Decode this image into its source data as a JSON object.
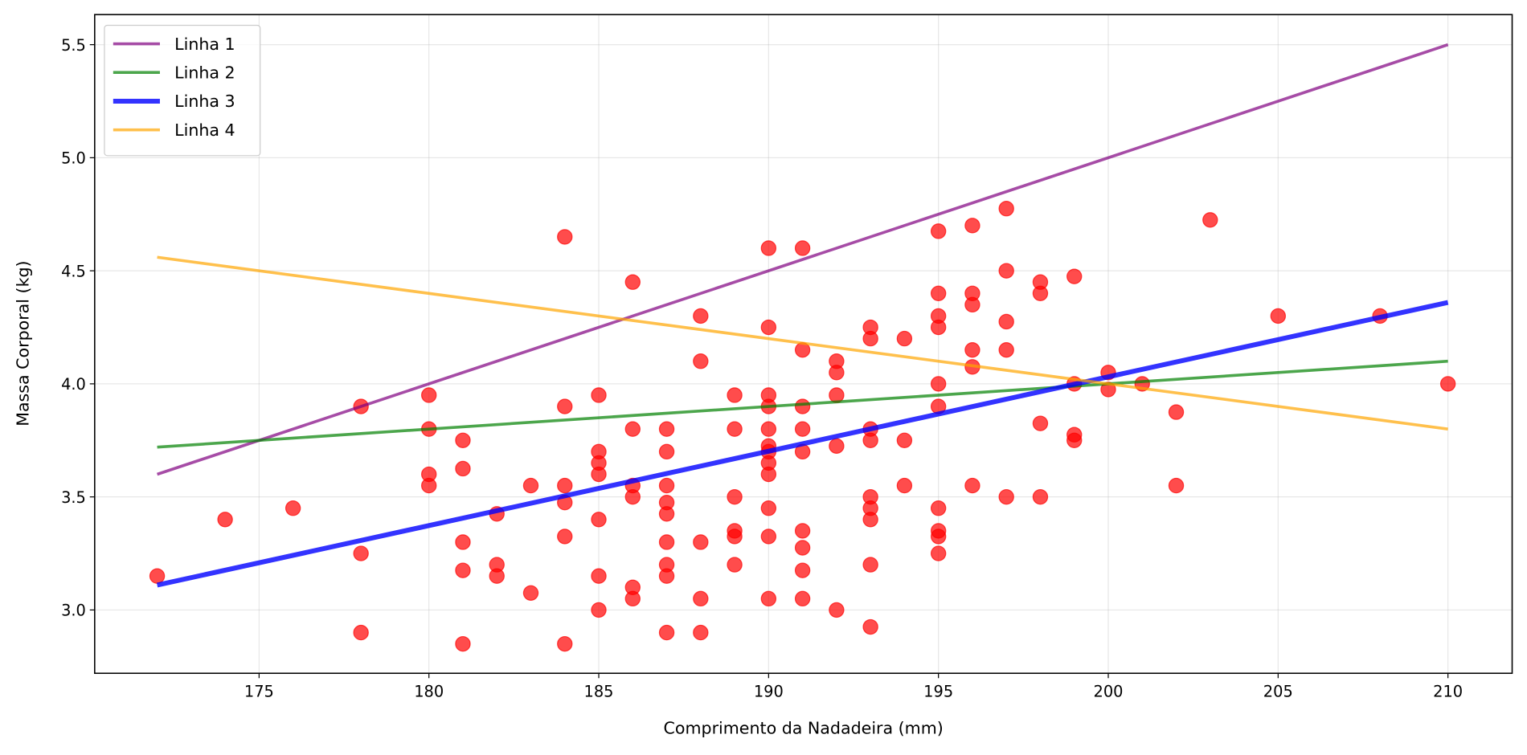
{
  "chart_data": {
    "type": "scatter",
    "title": "",
    "xlabel": "Comprimento da Nadadeira (mm)",
    "ylabel": "Massa Corporal (kg)",
    "xlim": [
      170.16,
      211.89
    ],
    "ylim": [
      2.72,
      5.633
    ],
    "xticks": [
      175,
      180,
      185,
      190,
      195,
      200,
      205,
      210
    ],
    "yticks": [
      3.0,
      3.5,
      4.0,
      4.5,
      5.0,
      5.5
    ],
    "xtick_labels": [
      "175",
      "180",
      "185",
      "190",
      "195",
      "200",
      "205",
      "210"
    ],
    "ytick_labels": [
      "3.0",
      "3.5",
      "4.0",
      "4.5",
      "5.0",
      "5.5"
    ],
    "grid": true,
    "legend_position": "top-left",
    "scatter_color": "#ff0000",
    "points": [
      [
        172,
        3.15
      ],
      [
        174,
        3.4
      ],
      [
        176,
        3.45
      ],
      [
        178,
        3.9
      ],
      [
        178,
        3.25
      ],
      [
        178,
        2.9
      ],
      [
        180,
        3.95
      ],
      [
        180,
        3.8
      ],
      [
        180,
        3.6
      ],
      [
        180,
        3.55
      ],
      [
        181,
        3.75
      ],
      [
        181,
        3.625
      ],
      [
        181,
        3.3
      ],
      [
        181,
        3.175
      ],
      [
        181,
        2.85
      ],
      [
        182,
        3.425
      ],
      [
        182,
        3.2
      ],
      [
        182,
        3.15
      ],
      [
        183,
        3.55
      ],
      [
        183,
        3.075
      ],
      [
        184,
        4.65
      ],
      [
        184,
        3.9
      ],
      [
        184,
        3.55
      ],
      [
        184,
        3.475
      ],
      [
        184,
        3.325
      ],
      [
        184,
        2.85
      ],
      [
        185,
        3.95
      ],
      [
        185,
        3.7
      ],
      [
        185,
        3.65
      ],
      [
        185,
        3.6
      ],
      [
        185,
        3.4
      ],
      [
        185,
        3.15
      ],
      [
        185,
        3.0
      ],
      [
        186,
        4.45
      ],
      [
        186,
        3.8
      ],
      [
        186,
        3.55
      ],
      [
        186,
        3.5
      ],
      [
        186,
        3.1
      ],
      [
        186,
        3.05
      ],
      [
        187,
        3.8
      ],
      [
        187,
        3.7
      ],
      [
        187,
        3.55
      ],
      [
        187,
        3.475
      ],
      [
        187,
        3.425
      ],
      [
        187,
        3.3
      ],
      [
        187,
        3.2
      ],
      [
        187,
        3.15
      ],
      [
        187,
        2.9
      ],
      [
        188,
        4.3
      ],
      [
        188,
        4.1
      ],
      [
        188,
        3.3
      ],
      [
        188,
        3.05
      ],
      [
        188,
        2.9
      ],
      [
        189,
        3.95
      ],
      [
        189,
        3.8
      ],
      [
        189,
        3.5
      ],
      [
        189,
        3.35
      ],
      [
        189,
        3.325
      ],
      [
        189,
        3.2
      ],
      [
        190,
        4.6
      ],
      [
        190,
        4.25
      ],
      [
        190,
        3.95
      ],
      [
        190,
        3.9
      ],
      [
        190,
        3.8
      ],
      [
        190,
        3.725
      ],
      [
        190,
        3.7
      ],
      [
        190,
        3.65
      ],
      [
        190,
        3.6
      ],
      [
        190,
        3.45
      ],
      [
        190,
        3.325
      ],
      [
        190,
        3.05
      ],
      [
        191,
        4.6
      ],
      [
        191,
        4.15
      ],
      [
        191,
        3.9
      ],
      [
        191,
        3.8
      ],
      [
        191,
        3.7
      ],
      [
        191,
        3.35
      ],
      [
        191,
        3.275
      ],
      [
        191,
        3.175
      ],
      [
        191,
        3.05
      ],
      [
        192,
        4.1
      ],
      [
        192,
        4.05
      ],
      [
        192,
        3.95
      ],
      [
        192,
        3.725
      ],
      [
        192,
        3.0
      ],
      [
        193,
        4.25
      ],
      [
        193,
        4.2
      ],
      [
        193,
        3.8
      ],
      [
        193,
        3.75
      ],
      [
        193,
        3.5
      ],
      [
        193,
        3.45
      ],
      [
        193,
        3.4
      ],
      [
        193,
        3.2
      ],
      [
        193,
        2.925
      ],
      [
        194,
        4.2
      ],
      [
        194,
        3.75
      ],
      [
        194,
        3.55
      ],
      [
        195,
        4.675
      ],
      [
        195,
        4.4
      ],
      [
        195,
        4.3
      ],
      [
        195,
        4.25
      ],
      [
        195,
        4.0
      ],
      [
        195,
        3.9
      ],
      [
        195,
        3.45
      ],
      [
        195,
        3.35
      ],
      [
        195,
        3.325
      ],
      [
        195,
        3.25
      ],
      [
        196,
        4.7
      ],
      [
        196,
        4.4
      ],
      [
        196,
        4.35
      ],
      [
        196,
        4.15
      ],
      [
        196,
        4.075
      ],
      [
        196,
        3.55
      ],
      [
        197,
        4.775
      ],
      [
        197,
        4.5
      ],
      [
        197,
        4.275
      ],
      [
        197,
        4.15
      ],
      [
        197,
        3.5
      ],
      [
        198,
        4.45
      ],
      [
        198,
        4.4
      ],
      [
        198,
        3.825
      ],
      [
        198,
        3.5
      ],
      [
        199,
        4.475
      ],
      [
        199,
        4.0
      ],
      [
        199,
        3.775
      ],
      [
        199,
        3.75
      ],
      [
        200,
        4.05
      ],
      [
        200,
        3.975
      ],
      [
        201,
        4.0
      ],
      [
        202,
        3.875
      ],
      [
        202,
        3.55
      ],
      [
        203,
        4.725
      ],
      [
        205,
        4.3
      ],
      [
        208,
        4.3
      ],
      [
        210,
        4.0
      ]
    ],
    "series": [
      {
        "name": "Linha 1",
        "color": "#800080",
        "opacity": 0.7,
        "x": [
          172,
          210
        ],
        "y": [
          3.6,
          5.5
        ]
      },
      {
        "name": "Linha 2",
        "color": "#008000",
        "opacity": 0.7,
        "x": [
          172,
          210
        ],
        "y": [
          3.72,
          4.1
        ]
      },
      {
        "name": "Linha 3",
        "color": "#0000ff",
        "opacity": 0.8,
        "x": [
          172,
          210
        ],
        "y": [
          3.11,
          4.36
        ]
      },
      {
        "name": "Linha 4",
        "color": "#ffa500",
        "opacity": 0.7,
        "x": [
          172,
          210
        ],
        "y": [
          4.56,
          3.8
        ]
      }
    ]
  }
}
